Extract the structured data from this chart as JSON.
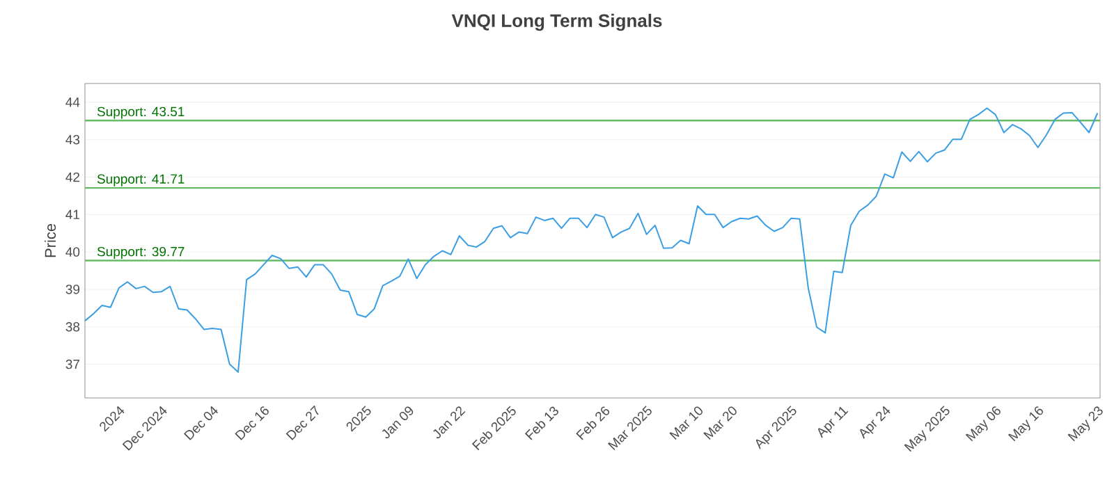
{
  "chart_data": {
    "type": "line",
    "title": "VNQI Long Term Signals",
    "ylabel": "Price",
    "categories": [
      null,
      null,
      null,
      null,
      "2024",
      null,
      null,
      null,
      null,
      "Dec 2024",
      null,
      null,
      null,
      null,
      null,
      "Dec 04",
      null,
      null,
      null,
      null,
      null,
      "Dec 16",
      null,
      null,
      null,
      null,
      null,
      "Dec 27",
      null,
      null,
      null,
      null,
      null,
      "2025",
      null,
      null,
      null,
      null,
      "Jan 09",
      null,
      null,
      null,
      null,
      null,
      "Jan 22",
      null,
      null,
      null,
      null,
      null,
      "Feb 2025",
      null,
      null,
      null,
      null,
      "Feb 13",
      null,
      null,
      null,
      null,
      null,
      "Feb 26",
      null,
      null,
      null,
      null,
      "Mar 2025",
      null,
      null,
      null,
      null,
      null,
      "Mar 10",
      null,
      null,
      null,
      "Mar 20",
      null,
      null,
      null,
      null,
      null,
      null,
      "Apr 2025",
      null,
      null,
      null,
      null,
      null,
      "Apr 11",
      null,
      null,
      null,
      null,
      "Apr 24",
      null,
      null,
      null,
      null,
      null,
      null,
      "May 2025",
      null,
      null,
      null,
      null,
      null,
      "May 06",
      null,
      null,
      null,
      null,
      "May 16",
      null,
      null,
      null,
      null,
      null,
      null,
      "May 23"
    ],
    "series": [
      {
        "color": "#3a9ee4",
        "values": [
          38.16,
          38.35,
          38.57,
          38.52,
          39.04,
          39.2,
          39.02,
          39.08,
          38.92,
          38.94,
          39.08,
          38.48,
          38.45,
          38.21,
          37.93,
          37.96,
          37.93,
          37.0,
          36.79,
          39.26,
          39.41,
          39.66,
          39.91,
          39.82,
          39.56,
          39.6,
          39.33,
          39.66,
          39.66,
          39.41,
          38.98,
          38.94,
          38.33,
          38.26,
          38.48,
          39.1,
          39.22,
          39.35,
          39.81,
          39.29,
          39.66,
          39.88,
          40.03,
          39.93,
          40.43,
          40.18,
          40.13,
          40.28,
          40.63,
          40.7,
          40.38,
          40.53,
          40.49,
          40.93,
          40.84,
          40.9,
          40.63,
          40.9,
          40.9,
          40.65,
          41.0,
          40.93,
          40.38,
          40.53,
          40.63,
          41.03,
          40.47,
          40.71,
          40.1,
          40.11,
          40.31,
          40.22,
          41.23,
          41.0,
          41.0,
          40.65,
          40.81,
          40.9,
          40.88,
          40.96,
          40.71,
          40.55,
          40.65,
          40.9,
          40.88,
          39.04,
          37.99,
          37.84,
          39.48,
          39.45,
          40.71,
          41.09,
          41.25,
          41.49,
          42.08,
          41.98,
          42.67,
          42.42,
          42.68,
          42.41,
          42.64,
          42.72,
          43.01,
          43.01,
          43.54,
          43.67,
          43.84,
          43.67,
          43.19,
          43.4,
          43.29,
          43.11,
          42.79,
          43.13,
          43.54,
          43.71,
          43.72,
          43.46,
          43.19,
          43.71
        ]
      }
    ],
    "ylim": [
      36.1,
      44.5
    ],
    "yticks": [
      37,
      38,
      39,
      40,
      41,
      42,
      43,
      44
    ],
    "grid": "y",
    "legend": false,
    "marker": "none",
    "line_style": "solid",
    "ref_lines": [
      {
        "axis": "y",
        "value": 43.51,
        "label": "Support: 43.51",
        "color": "#66bb66"
      },
      {
        "axis": "y",
        "value": 41.71,
        "label": "Support: 41.71",
        "color": "#66bb66"
      },
      {
        "axis": "y",
        "value": 39.77,
        "label": "Support: 39.77",
        "color": "#66bb66"
      }
    ]
  }
}
